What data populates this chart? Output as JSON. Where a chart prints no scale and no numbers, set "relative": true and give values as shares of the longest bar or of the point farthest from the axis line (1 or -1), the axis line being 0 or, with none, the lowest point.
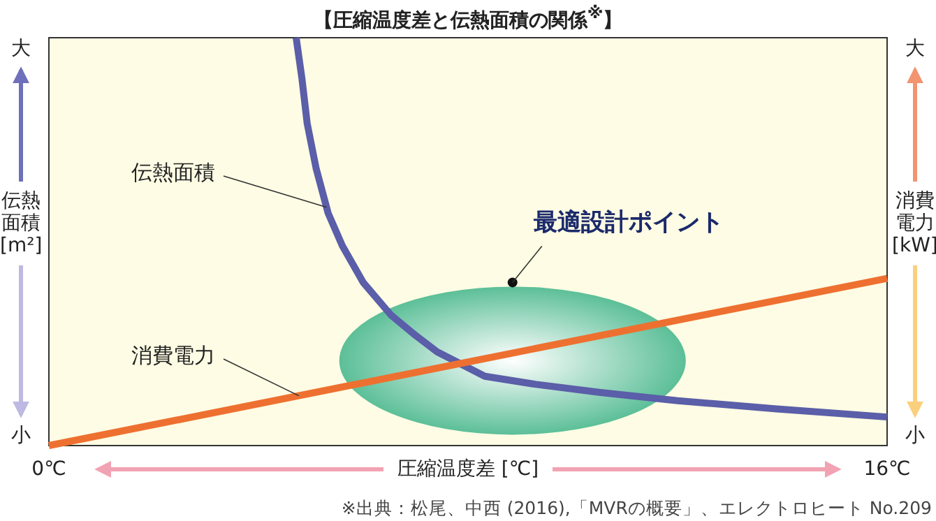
{
  "chart_data": {
    "type": "line",
    "title": "【圧縮温度差と伝熱面積の関係$^{※}$】",
    "xlabel": "圧縮温度差 [℃]",
    "ylabel": "伝熱面積[m²]",
    "y2label": "消費電力[kW]",
    "relative": true,
    "legend": false,
    "grid": false,
    "marker": "none",
    "line_style": "solid",
    "xlim": [
      0,
      16
    ],
    "xticks": [
      {
        "value": 0,
        "label": "0℃"
      },
      {
        "value": 16,
        "label": "16℃"
      }
    ],
    "series": [
      {
        "name": "伝熱面積",
        "color": "#5b5ea8",
        "x": [
          4.72,
          4.83,
          4.93,
          5.1,
          5.33,
          5.6,
          6.0,
          6.53,
          7.0,
          7.41,
          8.32,
          9.3,
          10.53,
          12.0,
          13.89,
          16
        ],
        "values": [
          1.0,
          0.9,
          0.79,
          0.68,
          0.57,
          0.49,
          0.4,
          0.32,
          0.27,
          0.23,
          0.17,
          0.15,
          0.13,
          0.11,
          0.09,
          0.07
        ]
      },
      {
        "name": "消費電力",
        "color": "#ee7030",
        "x": [
          0,
          16
        ],
        "values": [
          0,
          0.41
        ]
      }
    ],
    "annotations": [
      {
        "text": "最適設計ポイント",
        "x": 8.85,
        "y": 0.4
      },
      "大",
      "小",
      "大",
      "小",
      "※出典：松尾、中西 (2016),「MVRの概要」、エレクトロヒート No.209"
    ]
  }
}
